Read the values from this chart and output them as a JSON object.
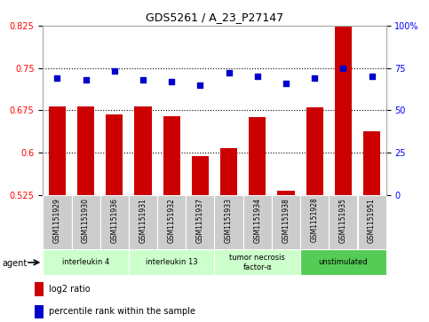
{
  "title": "GDS5261 / A_23_P27147",
  "samples": [
    "GSM1151929",
    "GSM1151930",
    "GSM1151936",
    "GSM1151931",
    "GSM1151932",
    "GSM1151937",
    "GSM1151933",
    "GSM1151934",
    "GSM1151938",
    "GSM1151928",
    "GSM1151935",
    "GSM1151951"
  ],
  "log2_ratio": [
    0.682,
    0.682,
    0.668,
    0.682,
    0.665,
    0.594,
    0.608,
    0.663,
    0.533,
    0.68,
    0.845,
    0.638
  ],
  "percentile_rank": [
    69,
    68,
    73,
    68,
    67,
    65,
    72,
    70,
    66,
    69,
    75,
    70
  ],
  "ylim_left": [
    0.525,
    0.825
  ],
  "ylim_right": [
    0,
    100
  ],
  "yticks_left": [
    0.525,
    0.6,
    0.675,
    0.75,
    0.825
  ],
  "ytick_labels_left": [
    "0.525",
    "0.6",
    "0.675",
    "0.75",
    "0.825"
  ],
  "yticks_right": [
    0,
    25,
    50,
    75,
    100
  ],
  "ytick_labels_right": [
    "0",
    "25",
    "50",
    "75",
    "100%"
  ],
  "bar_color": "#cc0000",
  "dot_color": "#0000cc",
  "agents": [
    {
      "label": "interleukin 4",
      "start": 0,
      "end": 2,
      "color": "#ccffcc"
    },
    {
      "label": "interleukin 13",
      "start": 3,
      "end": 5,
      "color": "#ccffcc"
    },
    {
      "label": "tumor necrosis\nfactor-α",
      "start": 6,
      "end": 8,
      "color": "#ccffcc"
    },
    {
      "label": "unstimulated",
      "start": 9,
      "end": 11,
      "color": "#55cc55"
    }
  ],
  "agent_label": "agent",
  "legend_log2": "log2 ratio",
  "legend_pct": "percentile rank within the sample",
  "dotted_lines": [
    0.6,
    0.675,
    0.75
  ],
  "sample_box_color": "#cccccc",
  "fig_bg": "#ffffff"
}
